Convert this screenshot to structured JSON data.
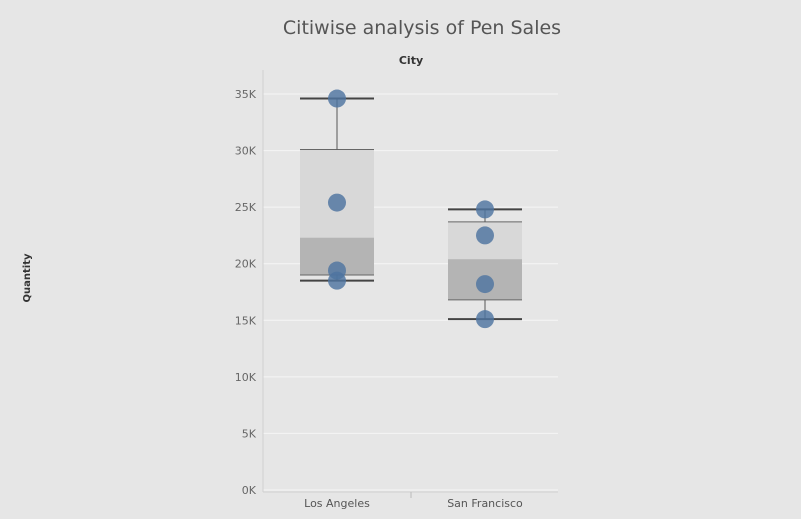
{
  "chart_data": {
    "type": "box",
    "title": "Citiwise analysis of Pen Sales",
    "column_header": "City",
    "ylabel": "Quantity",
    "ylim": [
      0,
      36000
    ],
    "yticks": [
      0,
      5000,
      10000,
      15000,
      20000,
      25000,
      30000,
      35000
    ],
    "ytick_labels": [
      "0K",
      "5K",
      "10K",
      "15K",
      "20K",
      "25K",
      "30K",
      "35K"
    ],
    "categories": [
      "Los Angeles",
      "San Francisco"
    ],
    "boxes": [
      {
        "city": "Los Angeles",
        "min": 18500,
        "q1": 19000,
        "median": 22300,
        "q3": 30100,
        "max": 34600
      },
      {
        "city": "San Francisco",
        "min": 15100,
        "q1": 16800,
        "median": 20400,
        "q3": 23700,
        "max": 24800
      }
    ],
    "points": [
      {
        "city": "Los Angeles",
        "values": [
          34600,
          25400,
          19400,
          18500
        ]
      },
      {
        "city": "San Francisco",
        "values": [
          24800,
          22500,
          18200,
          15100
        ]
      }
    ],
    "colors": {
      "background": "#e6e6e6",
      "point": "#4e74a0",
      "box_upper": "#d8d8d8",
      "box_lower": "#b4b4b4",
      "whisker": "#555555",
      "grid": "#f5f5f5"
    },
    "grid": true
  }
}
